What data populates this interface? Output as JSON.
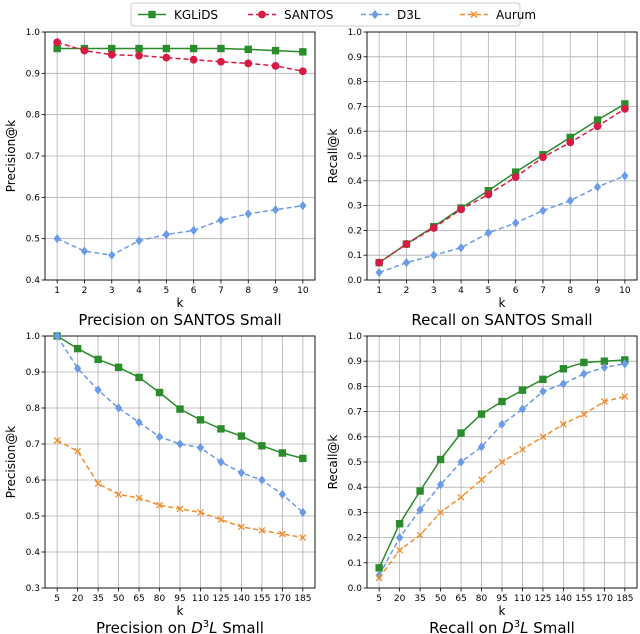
{
  "legend": {
    "placement": "top-center",
    "entries": [
      {
        "name": "KGLiDS",
        "color": "#2a8c2a",
        "dash": "solid",
        "marker": "square"
      },
      {
        "name": "SANTOS",
        "color": "#d81b45",
        "dash": "dashed",
        "marker": "circle"
      },
      {
        "name": "D3L",
        "color": "#6b9be8",
        "dash": "dashed",
        "marker": "diamond"
      },
      {
        "name": "Aurum",
        "color": "#f28e2b",
        "dash": "dashed",
        "marker": "x"
      }
    ]
  },
  "chart_data": [
    {
      "type": "line",
      "title": "Precision on SANTOS Small",
      "xlabel": "k",
      "ylabel": "Precision@k",
      "categories": [
        "1",
        "2",
        "3",
        "4",
        "5",
        "6",
        "7",
        "8",
        "9",
        "10"
      ],
      "yticks": [
        "0.4",
        "0.5",
        "0.6",
        "0.7",
        "0.8",
        "0.9",
        "1.0"
      ],
      "ylim": [
        0.4,
        1.0
      ],
      "grid": true,
      "series": [
        {
          "name": "KGLiDS",
          "values": [
            0.96,
            0.96,
            0.96,
            0.96,
            0.96,
            0.96,
            0.96,
            0.958,
            0.955,
            0.952
          ]
        },
        {
          "name": "SANTOS",
          "values": [
            0.975,
            0.955,
            0.945,
            0.943,
            0.938,
            0.933,
            0.928,
            0.924,
            0.918,
            0.905
          ]
        },
        {
          "name": "D3L",
          "values": [
            0.5,
            0.47,
            0.46,
            0.495,
            0.51,
            0.52,
            0.545,
            0.56,
            0.57,
            0.58
          ]
        }
      ]
    },
    {
      "type": "line",
      "title": "Recall on SANTOS Small",
      "xlabel": "k",
      "ylabel": "Recall@k",
      "categories": [
        "1",
        "2",
        "3",
        "4",
        "5",
        "6",
        "7",
        "8",
        "9",
        "10"
      ],
      "yticks": [
        "0.0",
        "0.1",
        "0.2",
        "0.3",
        "0.4",
        "0.5",
        "0.6",
        "0.7",
        "0.8",
        "0.9",
        "1.0"
      ],
      "ylim": [
        0.0,
        1.0
      ],
      "grid": true,
      "series": [
        {
          "name": "KGLiDS",
          "values": [
            0.07,
            0.145,
            0.215,
            0.29,
            0.36,
            0.435,
            0.505,
            0.575,
            0.645,
            0.71
          ]
        },
        {
          "name": "SANTOS",
          "values": [
            0.07,
            0.145,
            0.21,
            0.285,
            0.345,
            0.415,
            0.495,
            0.555,
            0.62,
            0.69
          ]
        },
        {
          "name": "D3L",
          "values": [
            0.03,
            0.07,
            0.1,
            0.13,
            0.19,
            0.23,
            0.28,
            0.32,
            0.375,
            0.42
          ]
        }
      ]
    },
    {
      "type": "line",
      "title_prefix": "Precision on ",
      "title_base": "D",
      "title_sup": "3",
      "title_suffix": "L Small",
      "xlabel": "k",
      "ylabel": "Precision@k",
      "categories": [
        "5",
        "20",
        "35",
        "50",
        "65",
        "80",
        "95",
        "110",
        "125",
        "140",
        "155",
        "170",
        "185"
      ],
      "yticks": [
        "0.3",
        "0.4",
        "0.5",
        "0.6",
        "0.7",
        "0.8",
        "0.9",
        "1.0"
      ],
      "ylim": [
        0.3,
        1.0
      ],
      "grid": true,
      "series": [
        {
          "name": "KGLiDS",
          "values": [
            1.0,
            0.965,
            0.935,
            0.913,
            0.885,
            0.843,
            0.797,
            0.767,
            0.742,
            0.722,
            0.695,
            0.675,
            0.66
          ]
        },
        {
          "name": "D3L",
          "values": [
            1.0,
            0.91,
            0.85,
            0.8,
            0.76,
            0.72,
            0.7,
            0.69,
            0.65,
            0.62,
            0.6,
            0.56,
            0.51
          ]
        },
        {
          "name": "Aurum",
          "values": [
            0.71,
            0.68,
            0.59,
            0.56,
            0.55,
            0.53,
            0.52,
            0.51,
            0.49,
            0.47,
            0.46,
            0.45,
            0.44
          ]
        }
      ]
    },
    {
      "type": "line",
      "title_prefix": "Recall on ",
      "title_base": "D",
      "title_sup": "3",
      "title_suffix": "L Small",
      "xlabel": "k",
      "ylabel": "Recall@k",
      "categories": [
        "5",
        "20",
        "35",
        "50",
        "65",
        "80",
        "95",
        "110",
        "125",
        "140",
        "155",
        "170",
        "185"
      ],
      "yticks": [
        "0.0",
        "0.1",
        "0.2",
        "0.3",
        "0.4",
        "0.5",
        "0.6",
        "0.7",
        "0.8",
        "0.9",
        "1.0"
      ],
      "ylim": [
        0.0,
        1.0
      ],
      "grid": true,
      "series": [
        {
          "name": "KGLiDS",
          "values": [
            0.08,
            0.255,
            0.385,
            0.51,
            0.615,
            0.69,
            0.74,
            0.785,
            0.828,
            0.87,
            0.895,
            0.9,
            0.905
          ]
        },
        {
          "name": "D3L",
          "values": [
            0.05,
            0.2,
            0.31,
            0.41,
            0.5,
            0.56,
            0.65,
            0.71,
            0.78,
            0.81,
            0.85,
            0.875,
            0.89
          ]
        },
        {
          "name": "Aurum",
          "values": [
            0.04,
            0.15,
            0.21,
            0.3,
            0.36,
            0.43,
            0.5,
            0.55,
            0.6,
            0.65,
            0.69,
            0.74,
            0.76
          ]
        }
      ]
    }
  ]
}
